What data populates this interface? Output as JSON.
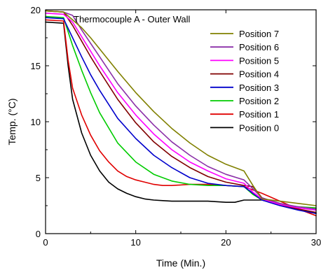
{
  "chart_data": {
    "type": "line",
    "title": "Thermocouple A - Outer Wall",
    "xlabel": "Time  (Min.)",
    "ylabel": "Temp. (°C)",
    "xlim": [
      0,
      30
    ],
    "ylim": [
      0,
      20
    ],
    "xticks": [
      0,
      10,
      20,
      30
    ],
    "yticks": [
      0,
      5,
      10,
      15,
      20
    ],
    "grid": false,
    "legend_position": "top-right",
    "series": [
      {
        "name": "Position 7",
        "color": "#808000",
        "x": [
          0,
          2,
          3,
          4,
          5,
          6,
          8,
          10,
          12,
          14,
          16,
          18,
          20,
          22,
          23,
          24,
          26,
          28,
          30
        ],
        "y": [
          19.9,
          19.8,
          19.1,
          18.4,
          17.5,
          16.5,
          14.5,
          12.6,
          10.9,
          9.4,
          8.1,
          7.0,
          6.2,
          5.6,
          4.3,
          3.1,
          2.9,
          2.7,
          2.5
        ]
      },
      {
        "name": "Position 6",
        "color": "#8B2FA8",
        "x": [
          0,
          2,
          3,
          4,
          5,
          6,
          8,
          10,
          12,
          14,
          16,
          18,
          20,
          22,
          23,
          24,
          26,
          28,
          30
        ],
        "y": [
          19.9,
          19.8,
          19.5,
          18.2,
          17.0,
          15.8,
          13.4,
          11.4,
          9.7,
          8.2,
          7.0,
          6.0,
          5.3,
          4.8,
          4.0,
          3.2,
          2.7,
          2.4,
          2.2
        ]
      },
      {
        "name": "Position 5",
        "color": "#FF00FF",
        "x": [
          0,
          2,
          3,
          4,
          5,
          6,
          8,
          10,
          12,
          14,
          16,
          18,
          20,
          22,
          23,
          24,
          26,
          28,
          30
        ],
        "y": [
          19.7,
          19.6,
          18.9,
          17.6,
          16.3,
          15.0,
          12.6,
          10.6,
          8.9,
          7.5,
          6.4,
          5.6,
          4.9,
          4.5,
          3.7,
          3.1,
          2.6,
          2.3,
          2.1
        ]
      },
      {
        "name": "Position 4",
        "color": "#800000",
        "x": [
          0,
          2,
          3,
          4,
          5,
          6,
          8,
          10,
          12,
          14,
          16,
          18,
          20,
          22,
          23,
          24,
          26,
          28,
          30
        ],
        "y": [
          19.9,
          19.8,
          18.6,
          17.2,
          15.8,
          14.5,
          12.0,
          9.9,
          8.2,
          6.9,
          5.9,
          5.1,
          4.6,
          4.3,
          4.2,
          3.2,
          2.6,
          2.2,
          1.9
        ]
      },
      {
        "name": "Position 3",
        "color": "#0000CC",
        "x": [
          0,
          2,
          3,
          4,
          5,
          6,
          8,
          10,
          12,
          14,
          16,
          18,
          20,
          22,
          23,
          24,
          26,
          28,
          30
        ],
        "y": [
          19.3,
          19.2,
          17.5,
          15.8,
          14.2,
          12.8,
          10.3,
          8.5,
          7.0,
          5.9,
          5.0,
          4.5,
          4.3,
          4.2,
          3.6,
          3.0,
          2.5,
          2.1,
          1.8
        ]
      },
      {
        "name": "Position 2",
        "color": "#00CC00",
        "x": [
          0,
          2,
          3,
          4,
          5,
          6,
          8,
          10,
          12,
          14,
          16,
          18,
          20,
          22,
          23,
          24,
          26,
          28,
          30
        ],
        "y": [
          19.4,
          19.3,
          16.8,
          14.6,
          12.6,
          10.8,
          8.1,
          6.4,
          5.3,
          4.7,
          4.4,
          4.3,
          4.3,
          4.2,
          3.5,
          3.0,
          2.6,
          2.4,
          2.3
        ]
      },
      {
        "name": "Position 1",
        "color": "#E00000",
        "x": [
          0,
          2,
          2.5,
          3,
          4,
          5,
          6,
          7,
          8,
          9,
          10,
          11,
          12,
          13,
          14,
          16,
          18,
          20,
          22,
          24,
          26,
          28,
          30
        ],
        "y": [
          19.1,
          19.0,
          15.5,
          13.0,
          10.6,
          8.8,
          7.4,
          6.4,
          5.6,
          5.1,
          4.8,
          4.6,
          4.4,
          4.3,
          4.3,
          4.4,
          4.4,
          4.3,
          4.2,
          3.6,
          2.9,
          2.2,
          1.6
        ]
      },
      {
        "name": "Position 0",
        "color": "#000000",
        "x": [
          0,
          2,
          2.5,
          3,
          4,
          5,
          6,
          7,
          8,
          9,
          10,
          11,
          12,
          13,
          14,
          16,
          18,
          20,
          21,
          22,
          24,
          26,
          28,
          30
        ],
        "y": [
          18.9,
          18.8,
          15.0,
          12.0,
          9.0,
          7.0,
          5.6,
          4.6,
          4.0,
          3.6,
          3.3,
          3.1,
          3.0,
          2.95,
          2.9,
          2.9,
          2.9,
          2.8,
          2.8,
          3.0,
          3.0,
          2.6,
          2.2,
          1.8
        ]
      }
    ]
  }
}
